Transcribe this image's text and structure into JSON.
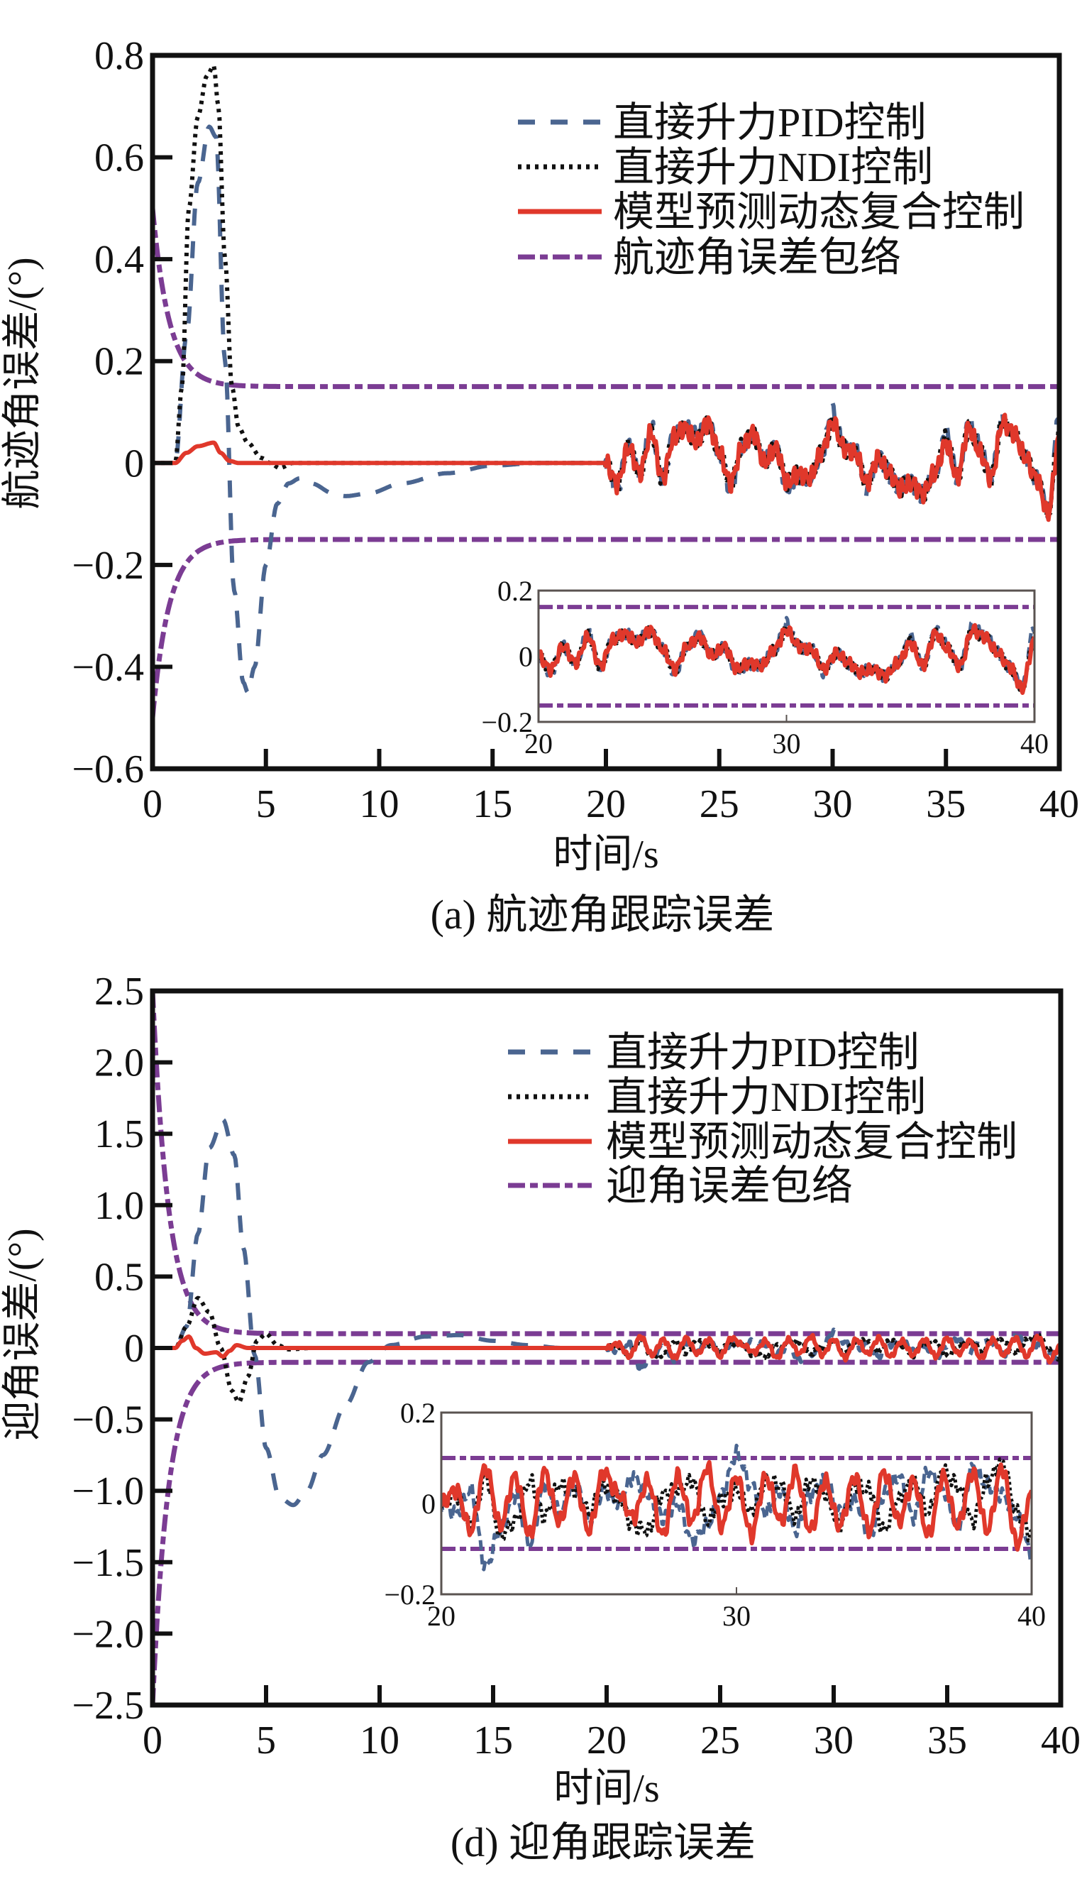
{
  "colors": {
    "pid": "#4a6590",
    "ndi": "#111111",
    "mpc": "#e0382b",
    "envelope": "#7b3c93",
    "axis": "#111111",
    "inset_frame": "#5a5350"
  },
  "chart_data": [
    {
      "id": "a",
      "type": "line",
      "caption": "(a) 航迹角跟踪误差",
      "xlabel": "时间/s",
      "ylabel": "航迹角误差/(°)",
      "xlim": [
        0,
        40
      ],
      "ylim": [
        -0.6,
        0.8
      ],
      "xticks": [
        0,
        5,
        10,
        15,
        20,
        25,
        30,
        35,
        40
      ],
      "xtick_labels": [
        "0",
        "5",
        "10",
        "15",
        "20",
        "25",
        "30",
        "35",
        "40"
      ],
      "yticks": [
        -0.6,
        -0.4,
        -0.2,
        0,
        0.2,
        0.4,
        0.6,
        0.8
      ],
      "ytick_labels": [
        "−0.6",
        "−0.4",
        "−0.2",
        "0",
        "0.2",
        "0.4",
        "0.6",
        "0.8"
      ],
      "grid": false,
      "legend_position": "top-right",
      "legend": [
        "直接升力PID控制",
        "直接升力NDI控制",
        "模型预测动态复合控制",
        "航迹角误差包络"
      ],
      "envelope": {
        "initial": 0.5,
        "final": 0.15,
        "decay_rate": 1.0
      },
      "series": [
        {
          "name": "直接升力PID控制",
          "key": "pid",
          "style": "dashed",
          "transient": {
            "t": [
              0,
              1.0,
              1.5,
              2.0,
              2.5,
              2.8,
              3.2,
              3.6,
              4.0,
              4.2,
              4.5,
              5.0,
              5.5,
              6.0,
              6.5,
              7.0,
              8.0,
              8.5,
              9.5,
              11,
              13,
              15,
              17,
              20
            ],
            "y": [
              0,
              0,
              0.25,
              0.55,
              0.66,
              0.64,
              0.2,
              -0.25,
              -0.43,
              -0.45,
              -0.4,
              -0.2,
              -0.08,
              -0.04,
              -0.03,
              -0.04,
              -0.06,
              -0.065,
              -0.06,
              -0.04,
              -0.02,
              -0.005,
              0,
              0
            ]
          },
          "noise": [
            0.0,
            -0.05,
            0.03,
            -0.02,
            0.07,
            -0.03,
            0.05,
            0.07,
            0.05,
            0.08,
            0.02,
            -0.05,
            0.03,
            0.07,
            0.0,
            0.03,
            -0.05,
            -0.02,
            -0.03,
            0.02,
            0.1,
            0.03,
            0.02,
            -0.05,
            0.01,
            -0.02,
            -0.05,
            -0.04,
            -0.06,
            -0.02,
            0.06,
            -0.03,
            0.08,
            0.03,
            -0.03,
            0.09,
            0.07,
            0.01,
            -0.03,
            -0.1,
            0.1
          ]
        },
        {
          "name": "直接升力NDI控制",
          "key": "ndi",
          "style": "dotted",
          "transient": {
            "t": [
              0,
              1.0,
              1.3,
              1.6,
              2.0,
              2.4,
              2.7,
              2.9,
              3.2,
              3.5,
              3.8,
              4.2,
              4.8,
              5.2,
              5.6,
              6.2,
              20
            ],
            "y": [
              0,
              0,
              0.15,
              0.5,
              0.68,
              0.76,
              0.78,
              0.7,
              0.4,
              0.15,
              0.07,
              0.04,
              0.01,
              0,
              -0.01,
              0,
              0
            ]
          },
          "noise": [
            0.0,
            -0.04,
            0.03,
            -0.02,
            0.06,
            -0.03,
            0.05,
            0.07,
            0.04,
            0.08,
            0.02,
            -0.04,
            0.03,
            0.06,
            0.0,
            0.03,
            -0.04,
            -0.02,
            -0.03,
            0.02,
            0.08,
            0.03,
            0.02,
            -0.04,
            0.01,
            -0.02,
            -0.05,
            -0.04,
            -0.06,
            -0.02,
            0.05,
            -0.03,
            0.07,
            0.02,
            -0.03,
            0.08,
            0.06,
            0.01,
            -0.03,
            -0.1,
            0.06
          ]
        },
        {
          "name": "模型预测动态复合控制",
          "key": "mpc",
          "style": "solid",
          "transient": {
            "t": [
              0,
              1.0,
              1.5,
              2.0,
              2.7,
              3.0,
              3.4,
              3.8,
              20
            ],
            "y": [
              0,
              0,
              0.02,
              0.033,
              0.04,
              0.02,
              0.004,
              0,
              0
            ]
          },
          "noise": [
            0.0,
            -0.04,
            0.03,
            -0.02,
            0.06,
            -0.03,
            0.05,
            0.07,
            0.04,
            0.08,
            0.02,
            -0.04,
            0.03,
            0.06,
            0.0,
            0.03,
            -0.04,
            -0.02,
            -0.03,
            0.02,
            0.08,
            0.03,
            0.02,
            -0.04,
            0.01,
            -0.02,
            -0.05,
            -0.04,
            -0.06,
            -0.02,
            0.04,
            -0.03,
            0.07,
            0.02,
            -0.03,
            0.08,
            0.06,
            0.01,
            -0.03,
            -0.1,
            0.05
          ]
        }
      ],
      "inset": {
        "xlim": [
          20,
          40
        ],
        "ylim": [
          -0.2,
          0.2
        ],
        "xticks": [
          20,
          30,
          40
        ],
        "xtick_labels": [
          "20",
          "30",
          "40"
        ],
        "yticks": [
          -0.2,
          0,
          0.2
        ],
        "ytick_labels": [
          "−0.2",
          "0",
          "0.2"
        ]
      }
    },
    {
      "id": "d",
      "type": "line",
      "caption": "(d) 迎角跟踪误差",
      "xlabel": "时间/s",
      "ylabel": "迎角误差/(°)",
      "xlim": [
        0,
        40
      ],
      "ylim": [
        -2.5,
        2.5
      ],
      "xticks": [
        0,
        5,
        10,
        15,
        20,
        25,
        30,
        35,
        40
      ],
      "xtick_labels": [
        "0",
        "5",
        "10",
        "15",
        "20",
        "25",
        "30",
        "35",
        "40"
      ],
      "yticks": [
        -2.5,
        -2.0,
        -1.5,
        -1.0,
        -0.5,
        0,
        0.5,
        1.0,
        1.5,
        2.0,
        2.5
      ],
      "ytick_labels": [
        "−2.5",
        "−2.0",
        "−1.5",
        "−1.0",
        "−0.5",
        "0",
        "0.5",
        "1.0",
        "1.5",
        "2.0",
        "2.5"
      ],
      "grid": false,
      "legend_position": "top-right",
      "legend": [
        "直接升力PID控制",
        "直接升力NDI控制",
        "模型预测动态复合控制",
        "迎角误差包络"
      ],
      "envelope": {
        "initial": 2.5,
        "final": 0.1,
        "decay_rate": 1.05
      },
      "series": [
        {
          "name": "直接升力PID控制",
          "key": "pid",
          "style": "dashed",
          "transient": {
            "t": [
              0,
              1.0,
              1.5,
              2.0,
              2.5,
              3.1,
              3.6,
              4.0,
              4.5,
              5.0,
              5.6,
              6.2,
              6.8,
              7.5,
              8.5,
              9.5,
              10.5,
              12,
              13.5,
              15,
              16.5,
              18,
              20
            ],
            "y": [
              0,
              0,
              0.15,
              0.8,
              1.4,
              1.6,
              1.35,
              0.7,
              -0.05,
              -0.7,
              -1.05,
              -1.1,
              -1.0,
              -0.75,
              -0.4,
              -0.1,
              0.02,
              0.08,
              0.09,
              0.05,
              0.02,
              0.0,
              0
            ]
          },
          "noise": [
            0.0,
            -0.02,
            0.03,
            -0.14,
            -0.06,
            0.02,
            -0.09,
            0.04,
            -0.02,
            0.05,
            -0.04,
            0.03,
            0.0,
            0.06,
            0.02,
            -0.03,
            0.0,
            -0.08,
            -0.05,
            0.02,
            0.11,
            0.04,
            -0.02,
            0.03,
            -0.06,
            0.02,
            0.05,
            -0.02,
            0.01,
            -0.07,
            0.02,
            0.06,
            -0.03,
            0.07,
            0.03,
            -0.05,
            0.08,
            0.04,
            0.02,
            -0.03,
            -0.11
          ]
        },
        {
          "name": "直接升力NDI控制",
          "key": "ndi",
          "style": "dotted",
          "transient": {
            "t": [
              0,
              1.0,
              1.5,
              2.0,
              2.5,
              3.0,
              3.5,
              3.8,
              4.2,
              4.6,
              5.0,
              5.5,
              6.0,
              7,
              20
            ],
            "y": [
              0,
              0,
              0.15,
              0.35,
              0.25,
              0.0,
              -0.3,
              -0.38,
              -0.2,
              0.05,
              0.1,
              0.02,
              -0.01,
              0,
              0
            ]
          },
          "noise": [
            0.0,
            0.02,
            -0.05,
            0.06,
            -0.07,
            -0.04,
            0.05,
            -0.03,
            0.04,
            0.03,
            -0.02,
            0.04,
            0.01,
            -0.05,
            -0.06,
            0.02,
            0.03,
            0.05,
            -0.04,
            0.01,
            0.03,
            -0.02,
            0.05,
            0.04,
            -0.03,
            0.05,
            0.02,
            -0.05,
            0.04,
            0.03,
            -0.06,
            0.01,
            0.05,
            -0.02,
            0.07,
            0.04,
            -0.04,
            0.05,
            0.09,
            -0.02,
            -0.07
          ]
        },
        {
          "name": "模型预测动态复合控制",
          "key": "mpc",
          "style": "solid",
          "transient": {
            "t": [
              0,
              1.0,
              1.3,
              1.6,
              1.9,
              2.3,
              2.8,
              3.1,
              3.4,
              3.7,
              4.2,
              5.0,
              20
            ],
            "y": [
              0,
              0,
              0.05,
              0.08,
              0.0,
              -0.04,
              -0.03,
              -0.06,
              -0.02,
              0.02,
              0.0,
              0,
              0
            ]
          },
          "noise": [
            0.0,
            0.03,
            -0.06,
            0.08,
            -0.05,
            0.06,
            -0.07,
            0.07,
            -0.04,
            0.06,
            -0.06,
            0.07,
            0.02,
            -0.03,
            0.05,
            -0.07,
            0.06,
            -0.04,
            0.08,
            -0.05,
            0.06,
            -0.07,
            0.06,
            -0.04,
            0.07,
            -0.06,
            0.05,
            -0.05,
            0.06,
            -0.06,
            0.07,
            -0.04,
            0.05,
            -0.07,
            0.06,
            -0.05,
            0.07,
            -0.06,
            0.08,
            -0.09,
            0.02
          ]
        }
      ],
      "inset": {
        "xlim": [
          20,
          40
        ],
        "ylim": [
          -0.2,
          0.2
        ],
        "xticks": [
          20,
          30,
          40
        ],
        "xtick_labels": [
          "20",
          "30",
          "40"
        ],
        "yticks": [
          -0.2,
          0,
          0.2
        ],
        "ytick_labels": [
          "−0.2",
          "0",
          "0.2"
        ]
      }
    }
  ]
}
